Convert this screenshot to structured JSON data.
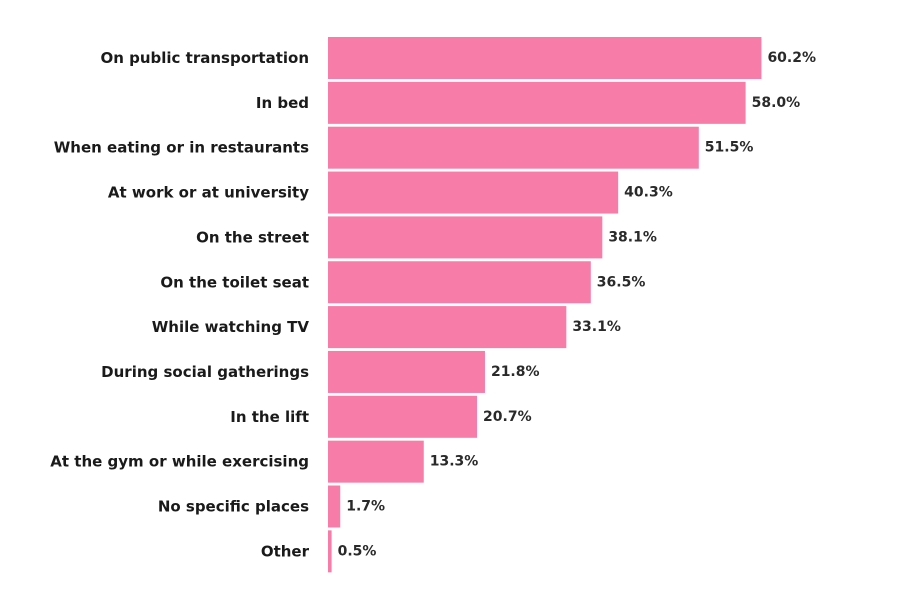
{
  "chart_data": {
    "type": "bar",
    "orientation": "horizontal",
    "categories": [
      "On public transportation",
      "In bed",
      "When eating or in restaurants",
      "At work or at university",
      "On the street",
      "On the toilet seat",
      "While watching TV",
      "During social gatherings",
      "In the lift",
      "At the gym or while exercising",
      "No specific places",
      "Other"
    ],
    "values": [
      60.2,
      58.0,
      51.5,
      40.3,
      38.1,
      36.5,
      33.1,
      21.8,
      20.7,
      13.3,
      1.7,
      0.5
    ],
    "value_labels": [
      "60.2%",
      "58.0%",
      "51.5%",
      "40.3%",
      "38.1%",
      "36.5%",
      "33.1%",
      "21.8%",
      "20.7%",
      "13.3%",
      "1.7%",
      "0.5%"
    ],
    "unit": "%",
    "title": "",
    "xlabel": "",
    "ylabel": "",
    "grid": false,
    "legend": "none",
    "colors": {
      "bar": "#F77CA8"
    }
  }
}
